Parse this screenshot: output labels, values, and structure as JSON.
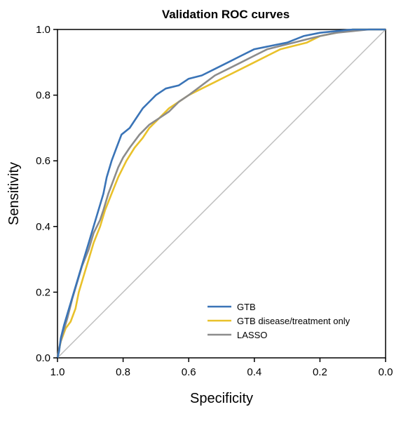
{
  "chart_data": {
    "type": "line",
    "title": "Validation ROC curves",
    "xlabel": "Specificity",
    "ylabel": "Sensitivity",
    "xlim": [
      1.0,
      0.0
    ],
    "ylim": [
      0.0,
      1.0
    ],
    "x_ticks": [
      "1.0",
      "0.8",
      "0.6",
      "0.4",
      "0.2",
      "0.0"
    ],
    "y_ticks": [
      "0.0",
      "0.2",
      "0.4",
      "0.6",
      "0.8",
      "1.0"
    ],
    "x_axis_reversed": true,
    "grid": false,
    "legend_position": "bottom-right",
    "reference_line": {
      "from": [
        1.0,
        0.0
      ],
      "to": [
        0.0,
        1.0
      ],
      "color": "#bdbdbd"
    },
    "series": [
      {
        "name": "GTB",
        "color": "#3a74b7",
        "points": [
          [
            1.0,
            0.0
          ],
          [
            0.995,
            0.02
          ],
          [
            0.99,
            0.06
          ],
          [
            0.98,
            0.1
          ],
          [
            0.965,
            0.15
          ],
          [
            0.95,
            0.2
          ],
          [
            0.935,
            0.25
          ],
          [
            0.92,
            0.3
          ],
          [
            0.905,
            0.35
          ],
          [
            0.89,
            0.4
          ],
          [
            0.875,
            0.45
          ],
          [
            0.86,
            0.5
          ],
          [
            0.85,
            0.55
          ],
          [
            0.835,
            0.6
          ],
          [
            0.82,
            0.64
          ],
          [
            0.805,
            0.68
          ],
          [
            0.78,
            0.7
          ],
          [
            0.76,
            0.73
          ],
          [
            0.74,
            0.76
          ],
          [
            0.72,
            0.78
          ],
          [
            0.7,
            0.8
          ],
          [
            0.67,
            0.82
          ],
          [
            0.63,
            0.83
          ],
          [
            0.6,
            0.85
          ],
          [
            0.56,
            0.86
          ],
          [
            0.52,
            0.88
          ],
          [
            0.48,
            0.9
          ],
          [
            0.44,
            0.92
          ],
          [
            0.4,
            0.94
          ],
          [
            0.35,
            0.95
          ],
          [
            0.3,
            0.96
          ],
          [
            0.25,
            0.98
          ],
          [
            0.2,
            0.99
          ],
          [
            0.15,
            0.995
          ],
          [
            0.1,
            1.0
          ],
          [
            0.0,
            1.0
          ]
        ]
      },
      {
        "name": "GTB disease/treatment only",
        "color": "#e9c12a",
        "points": [
          [
            1.0,
            0.0
          ],
          [
            0.99,
            0.05
          ],
          [
            0.975,
            0.09
          ],
          [
            0.96,
            0.11
          ],
          [
            0.945,
            0.15
          ],
          [
            0.935,
            0.2
          ],
          [
            0.92,
            0.25
          ],
          [
            0.905,
            0.3
          ],
          [
            0.89,
            0.35
          ],
          [
            0.87,
            0.4
          ],
          [
            0.855,
            0.45
          ],
          [
            0.835,
            0.5
          ],
          [
            0.815,
            0.55
          ],
          [
            0.79,
            0.6
          ],
          [
            0.765,
            0.64
          ],
          [
            0.74,
            0.67
          ],
          [
            0.72,
            0.7
          ],
          [
            0.69,
            0.73
          ],
          [
            0.66,
            0.76
          ],
          [
            0.63,
            0.78
          ],
          [
            0.6,
            0.8
          ],
          [
            0.56,
            0.82
          ],
          [
            0.52,
            0.84
          ],
          [
            0.48,
            0.86
          ],
          [
            0.44,
            0.88
          ],
          [
            0.4,
            0.9
          ],
          [
            0.36,
            0.92
          ],
          [
            0.32,
            0.94
          ],
          [
            0.28,
            0.95
          ],
          [
            0.24,
            0.96
          ],
          [
            0.2,
            0.98
          ],
          [
            0.15,
            0.99
          ],
          [
            0.1,
            1.0
          ],
          [
            0.0,
            1.0
          ]
        ]
      },
      {
        "name": "LASSO",
        "color": "#8c8c8c",
        "points": [
          [
            1.0,
            0.0
          ],
          [
            0.995,
            0.03
          ],
          [
            0.985,
            0.07
          ],
          [
            0.97,
            0.12
          ],
          [
            0.955,
            0.18
          ],
          [
            0.94,
            0.23
          ],
          [
            0.925,
            0.28
          ],
          [
            0.905,
            0.33
          ],
          [
            0.89,
            0.38
          ],
          [
            0.87,
            0.42
          ],
          [
            0.86,
            0.45
          ],
          [
            0.845,
            0.5
          ],
          [
            0.83,
            0.54
          ],
          [
            0.815,
            0.58
          ],
          [
            0.8,
            0.61
          ],
          [
            0.78,
            0.64
          ],
          [
            0.75,
            0.68
          ],
          [
            0.72,
            0.71
          ],
          [
            0.69,
            0.73
          ],
          [
            0.66,
            0.75
          ],
          [
            0.63,
            0.78
          ],
          [
            0.6,
            0.8
          ],
          [
            0.56,
            0.83
          ],
          [
            0.52,
            0.86
          ],
          [
            0.48,
            0.88
          ],
          [
            0.44,
            0.9
          ],
          [
            0.4,
            0.92
          ],
          [
            0.36,
            0.94
          ],
          [
            0.32,
            0.95
          ],
          [
            0.28,
            0.96
          ],
          [
            0.24,
            0.97
          ],
          [
            0.2,
            0.98
          ],
          [
            0.15,
            0.99
          ],
          [
            0.1,
            0.995
          ],
          [
            0.05,
            1.0
          ],
          [
            0.0,
            1.0
          ]
        ]
      }
    ]
  }
}
